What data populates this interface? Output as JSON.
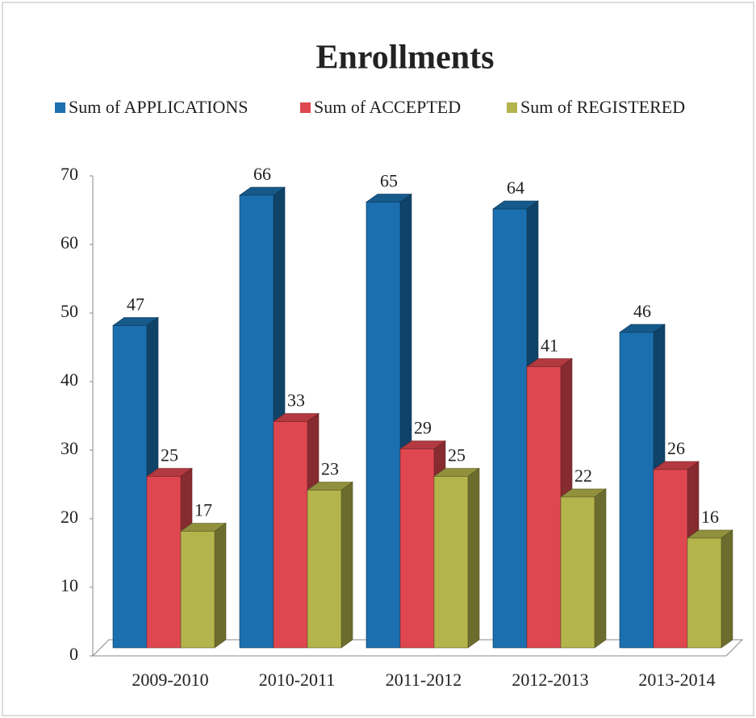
{
  "chart_data": {
    "type": "bar3d",
    "title": "Enrollments",
    "categories": [
      "2009-2010",
      "2010-2011",
      "2011-2012",
      "2012-2013",
      "2013-2014"
    ],
    "series": [
      {
        "name": "Sum of APPLICATIONS",
        "color": "#1b6fae",
        "values": [
          47,
          66,
          65,
          64,
          46
        ]
      },
      {
        "name": "Sum of ACCEPTED",
        "color": "#df4750",
        "values": [
          25,
          33,
          29,
          41,
          26
        ]
      },
      {
        "name": "Sum of REGISTERED",
        "color": "#b4b44c",
        "values": [
          17,
          23,
          25,
          22,
          16
        ]
      }
    ],
    "ylim": [
      0,
      70
    ],
    "yticks": [
      0,
      10,
      20,
      30,
      40,
      50,
      60,
      70
    ],
    "legend": "top"
  }
}
